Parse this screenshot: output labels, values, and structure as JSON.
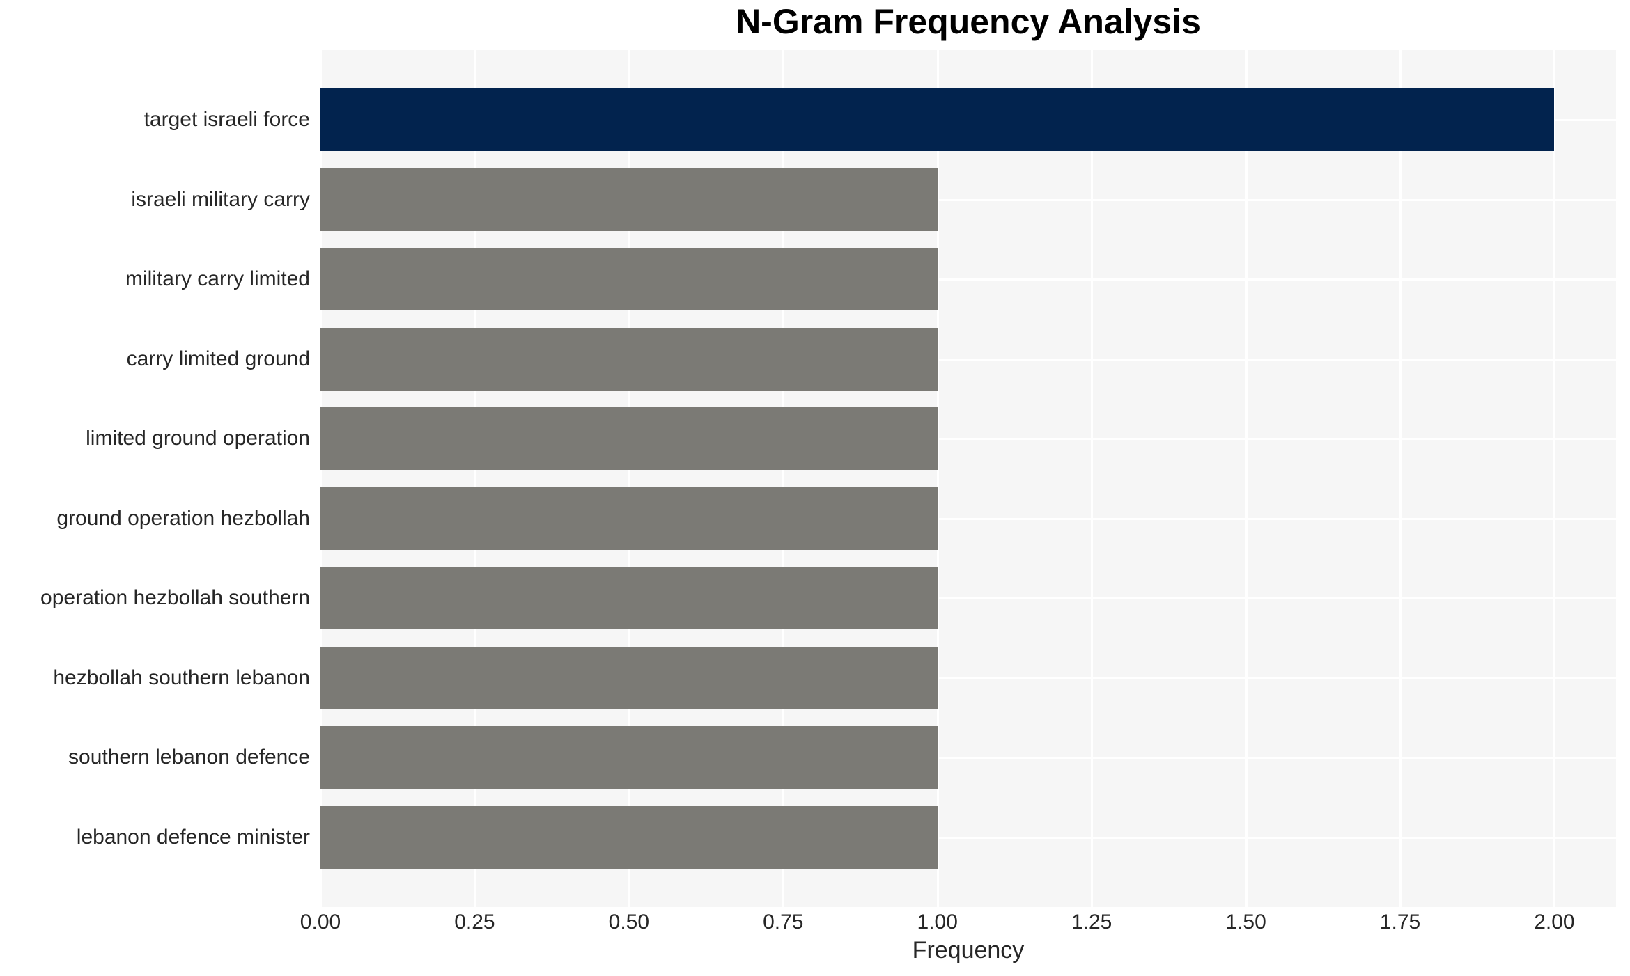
{
  "chart_data": {
    "type": "bar",
    "orientation": "horizontal",
    "title": "N-Gram Frequency Analysis",
    "xlabel": "Frequency",
    "ylabel": "",
    "categories": [
      "target israeli force",
      "israeli military carry",
      "military carry limited",
      "carry limited ground",
      "limited ground operation",
      "ground operation hezbollah",
      "operation hezbollah southern",
      "hezbollah southern lebanon",
      "southern lebanon defence",
      "lebanon defence minister"
    ],
    "values": [
      2,
      1,
      1,
      1,
      1,
      1,
      1,
      1,
      1,
      1
    ],
    "bar_colors": [
      "#02234e",
      "#7b7a75",
      "#7b7a75",
      "#7b7a75",
      "#7b7a75",
      "#7b7a75",
      "#7b7a75",
      "#7b7a75",
      "#7b7a75",
      "#7b7a75"
    ],
    "xlim": [
      0,
      2.1
    ],
    "xticks": [
      "0.00",
      "0.25",
      "0.50",
      "0.75",
      "1.00",
      "1.25",
      "1.50",
      "1.75",
      "2.00"
    ],
    "xtick_values": [
      0,
      0.25,
      0.5,
      0.75,
      1.0,
      1.25,
      1.5,
      1.75,
      2.0
    ],
    "grid": true,
    "legend": "none",
    "colors": {
      "highlight_bar": "#02234e",
      "default_bar": "#7b7a75",
      "plot_background": "#f6f6f6",
      "grid_line": "#ffffff",
      "tick_text": "#262626",
      "title_text": "#000000"
    }
  }
}
